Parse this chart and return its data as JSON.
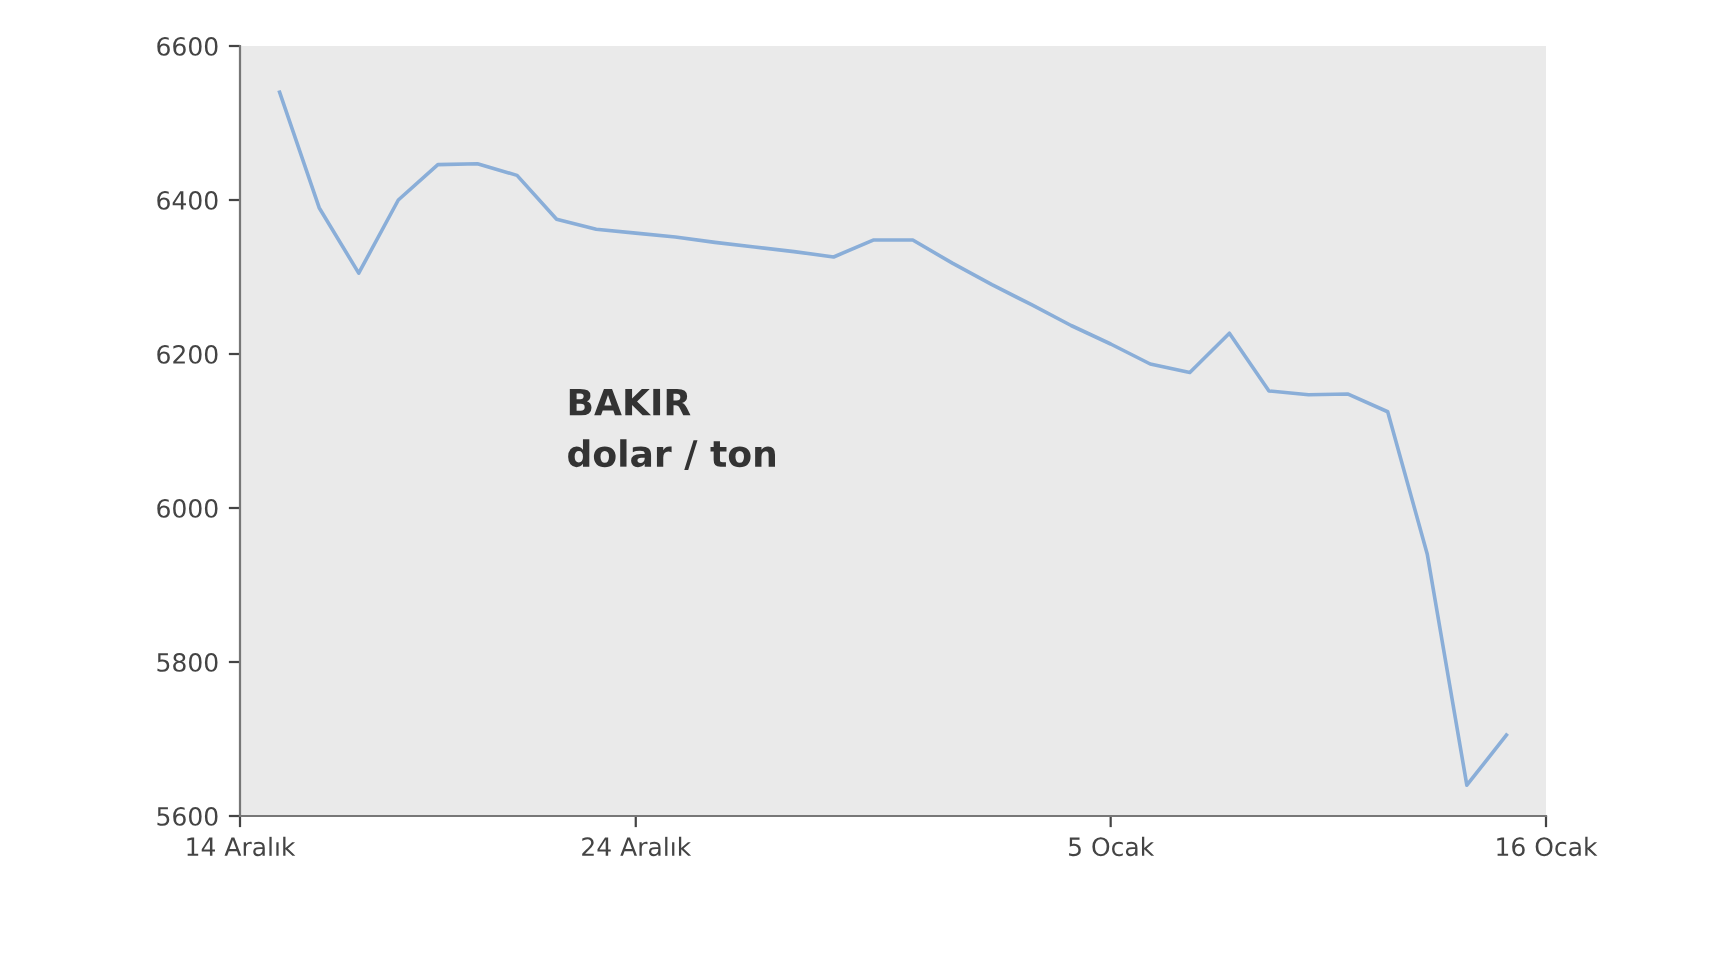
{
  "chart_data": {
    "type": "line",
    "annotations": [
      "BAKIR\ndolar / ton"
    ],
    "categories": [
      "14 Aralık",
      null,
      null,
      null,
      null,
      null,
      null,
      null,
      null,
      null,
      "24 Aralık",
      null,
      null,
      null,
      null,
      null,
      null,
      null,
      null,
      null,
      null,
      null,
      "5 Ocak",
      null,
      null,
      null,
      null,
      null,
      null,
      null,
      null,
      null,
      null,
      "16 Ocak"
    ],
    "series": [
      {
        "color": "#8aaed8",
        "values": [
          null,
          6540,
          6390,
          6305,
          6400,
          6446,
          6447,
          6432,
          6375,
          6362,
          6357,
          6352,
          6345,
          6339,
          6333,
          6326,
          6348,
          6348,
          6318,
          6290,
          6264,
          6237,
          6213,
          6187,
          6176,
          6227,
          6152,
          6147,
          6148,
          6125,
          5940,
          5640,
          5705,
          null
        ]
      }
    ],
    "ylim": [
      5600,
      6600
    ],
    "yticks": [
      5600,
      5800,
      6000,
      6200,
      6400,
      6600
    ],
    "grid": false,
    "legend": false,
    "marker": "none",
    "line_style": "solid"
  }
}
